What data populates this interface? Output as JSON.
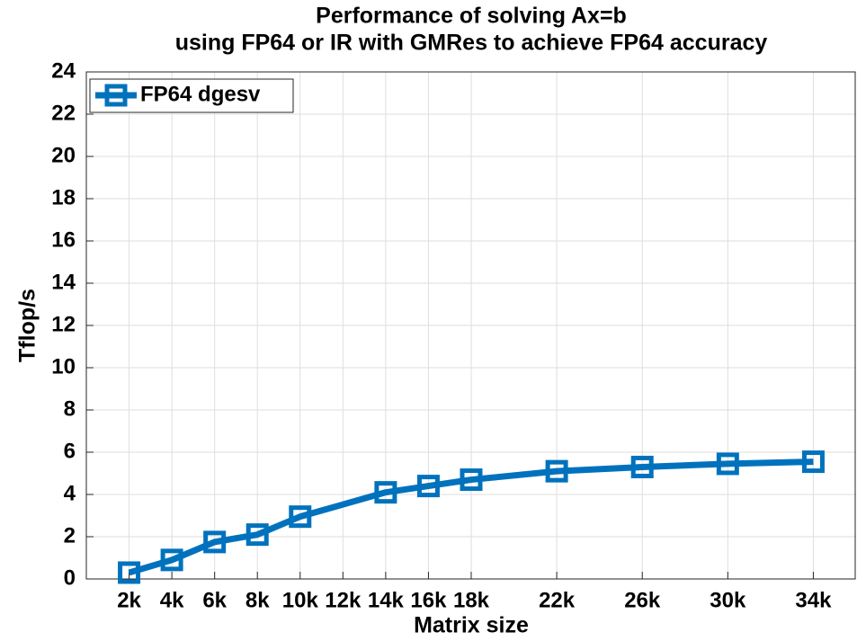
{
  "chart_data": {
    "type": "line",
    "title": [
      "Performance of solving Ax=b",
      "using FP64 or IR with GMRes to achieve FP64 accuracy"
    ],
    "xlabel": "Matrix size",
    "ylabel": "Tflop/s",
    "x": [
      2000,
      4000,
      6000,
      8000,
      10000,
      14000,
      16000,
      18000,
      22000,
      26000,
      30000,
      34000
    ],
    "series": [
      {
        "name": "FP64 dgesv",
        "color": "#0072bd",
        "values": [
          0.3,
          0.9,
          1.75,
          2.1,
          2.95,
          4.1,
          4.4,
          4.7,
          5.1,
          5.3,
          5.45,
          5.55
        ]
      }
    ],
    "xlim": [
      0,
      36000
    ],
    "xticks": [
      {
        "value": 2000,
        "label": "2k"
      },
      {
        "value": 4000,
        "label": "4k"
      },
      {
        "value": 6000,
        "label": "6k"
      },
      {
        "value": 8000,
        "label": "8k"
      },
      {
        "value": 10000,
        "label": "10k"
      },
      {
        "value": 12000,
        "label": "12k"
      },
      {
        "value": 14000,
        "label": "14k"
      },
      {
        "value": 16000,
        "label": "16k"
      },
      {
        "value": 18000,
        "label": "18k"
      },
      {
        "value": 22000,
        "label": "22k"
      },
      {
        "value": 26000,
        "label": "26k"
      },
      {
        "value": 30000,
        "label": "30k"
      },
      {
        "value": 34000,
        "label": "34k"
      }
    ],
    "ylim": [
      0,
      24
    ],
    "yticks": [
      0,
      2,
      4,
      6,
      8,
      10,
      12,
      14,
      16,
      18,
      20,
      22,
      24
    ],
    "grid": true,
    "legend": "upper left"
  }
}
